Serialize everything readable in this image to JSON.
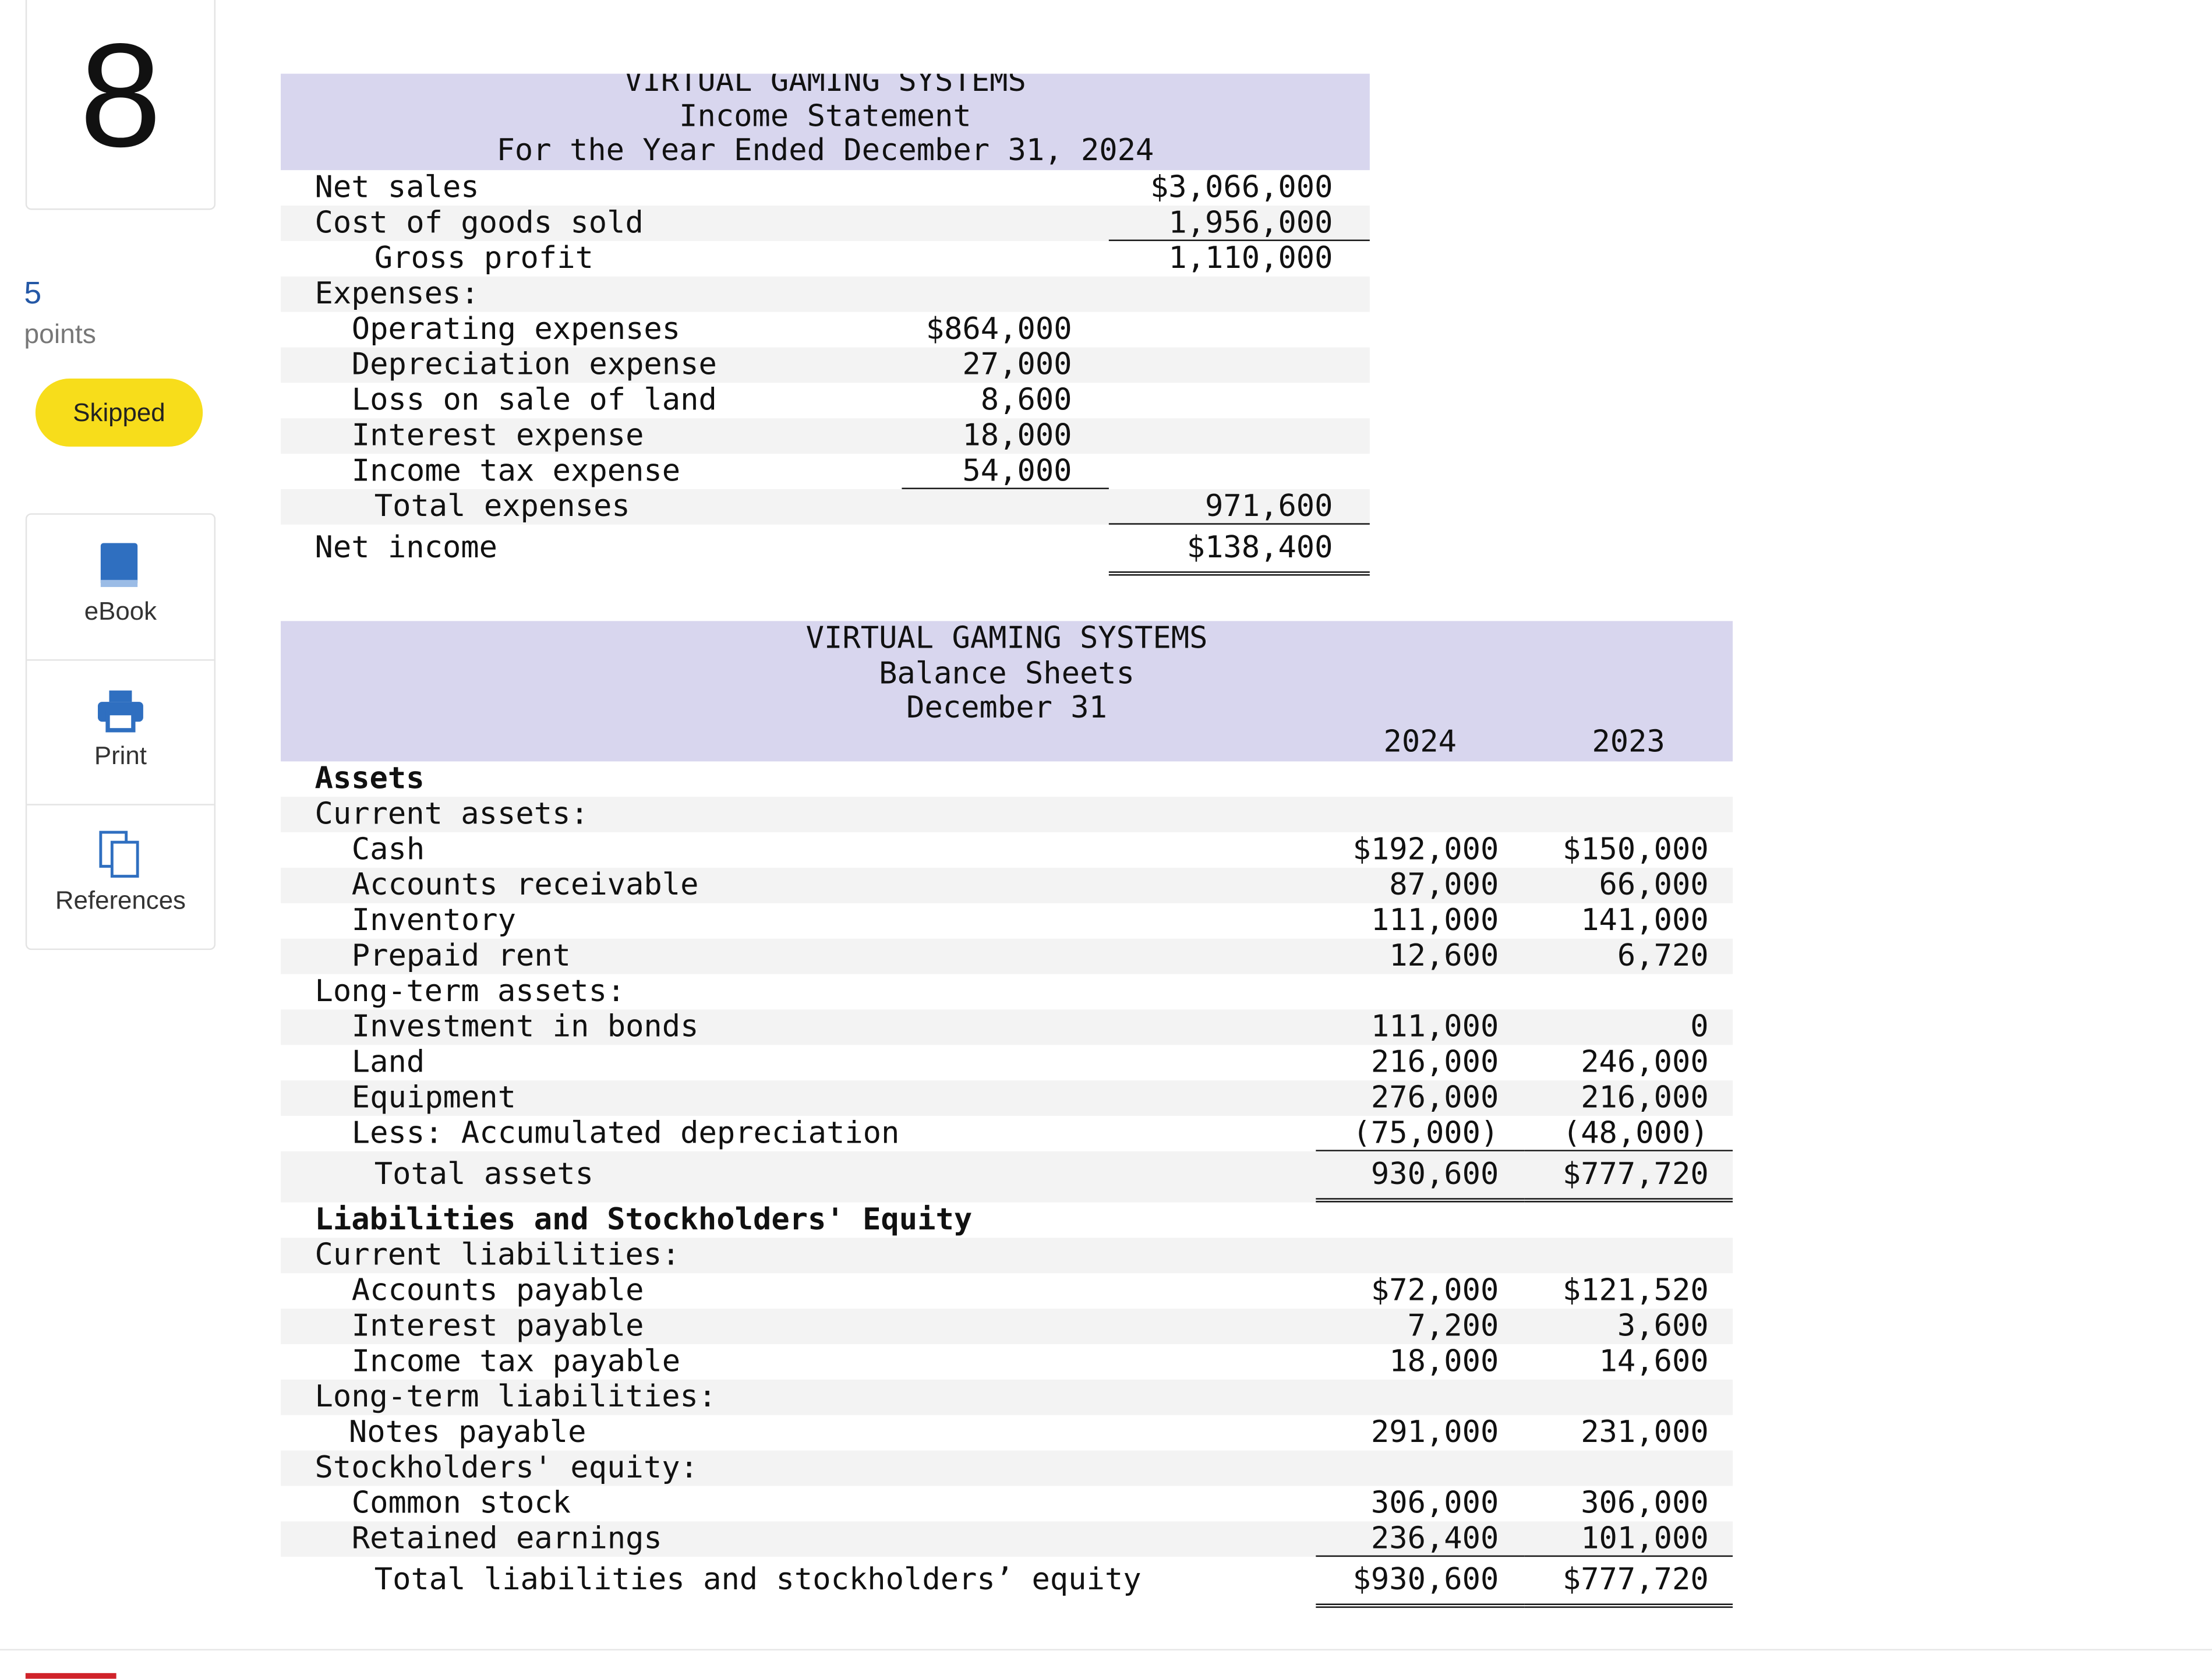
{
  "sidebar": {
    "question_number": "8",
    "points": "5",
    "points_label": "points",
    "status": "Skipped",
    "tools": [
      "eBook",
      "Print",
      "References"
    ]
  },
  "income_statement": {
    "title": [
      "VIRTUAL GAMING SYSTEMS",
      "Income Statement",
      "For the Year Ended December 31, 2024"
    ],
    "rows": [
      {
        "label": "Net sales",
        "values": [
          null,
          "$3,066,000"
        ]
      },
      {
        "label": "Cost of goods sold",
        "values": [
          null,
          "1,956,000"
        ]
      },
      {
        "label": "Gross profit",
        "values": [
          null,
          "1,110,000"
        ]
      },
      {
        "label": "Expenses:",
        "values": [
          null,
          null
        ]
      },
      {
        "label": "Operating expenses",
        "values": [
          "$864,000",
          null
        ]
      },
      {
        "label": "Depreciation expense",
        "values": [
          "27,000",
          null
        ]
      },
      {
        "label": "Loss on sale of land",
        "values": [
          "8,600",
          null
        ]
      },
      {
        "label": "Interest expense",
        "values": [
          "18,000",
          null
        ]
      },
      {
        "label": "Income tax expense",
        "values": [
          "54,000",
          null
        ]
      },
      {
        "label": "Total expenses",
        "values": [
          null,
          "971,600"
        ]
      },
      {
        "label": "Net income",
        "values": [
          null,
          "$138,400"
        ]
      }
    ]
  },
  "balance_sheet": {
    "title": [
      "VIRTUAL GAMING SYSTEMS",
      "Balance Sheets",
      "December 31"
    ],
    "years": [
      "2024",
      "2023"
    ],
    "rows": [
      {
        "label": "Assets",
        "values": [
          null,
          null
        ]
      },
      {
        "label": "Current assets:",
        "values": [
          null,
          null
        ]
      },
      {
        "label": "Cash",
        "values": [
          "$192,000",
          "$150,000"
        ]
      },
      {
        "label": "Accounts receivable",
        "values": [
          "87,000",
          "66,000"
        ]
      },
      {
        "label": "Inventory",
        "values": [
          "111,000",
          "141,000"
        ]
      },
      {
        "label": "Prepaid rent",
        "values": [
          "12,600",
          "6,720"
        ]
      },
      {
        "label": "Long-term assets:",
        "values": [
          null,
          null
        ]
      },
      {
        "label": "Investment in bonds",
        "values": [
          "111,000",
          "0"
        ]
      },
      {
        "label": "Land",
        "values": [
          "216,000",
          "246,000"
        ]
      },
      {
        "label": "Equipment",
        "values": [
          "276,000",
          "216,000"
        ]
      },
      {
        "label": "Less: Accumulated depreciation",
        "values": [
          "(75,000)",
          "(48,000)"
        ]
      },
      {
        "label": "Total assets",
        "values": [
          "930,600",
          "$777,720"
        ]
      },
      {
        "label": "Liabilities and Stockholders' Equity",
        "values": [
          null,
          null
        ]
      },
      {
        "label": "Current liabilities:",
        "values": [
          null,
          null
        ]
      },
      {
        "label": "Accounts payable",
        "values": [
          "$72,000",
          "$121,520"
        ]
      },
      {
        "label": "Interest payable",
        "values": [
          "7,200",
          "3,600"
        ]
      },
      {
        "label": "Income tax payable",
        "values": [
          "18,000",
          "14,600"
        ]
      },
      {
        "label": "Long-term liabilities:",
        "values": [
          null,
          null
        ]
      },
      {
        "label": "Notes payable",
        "values": [
          "291,000",
          "231,000"
        ]
      },
      {
        "label": "Stockholders' equity:",
        "values": [
          null,
          null
        ]
      },
      {
        "label": "Common stock",
        "values": [
          "306,000",
          "306,000"
        ]
      },
      {
        "label": "Retained earnings",
        "values": [
          "236,400",
          "101,000"
        ]
      },
      {
        "label": "Total liabilities and stockholders’ equity",
        "values": [
          "$930,600",
          "$777,720"
        ]
      }
    ]
  }
}
